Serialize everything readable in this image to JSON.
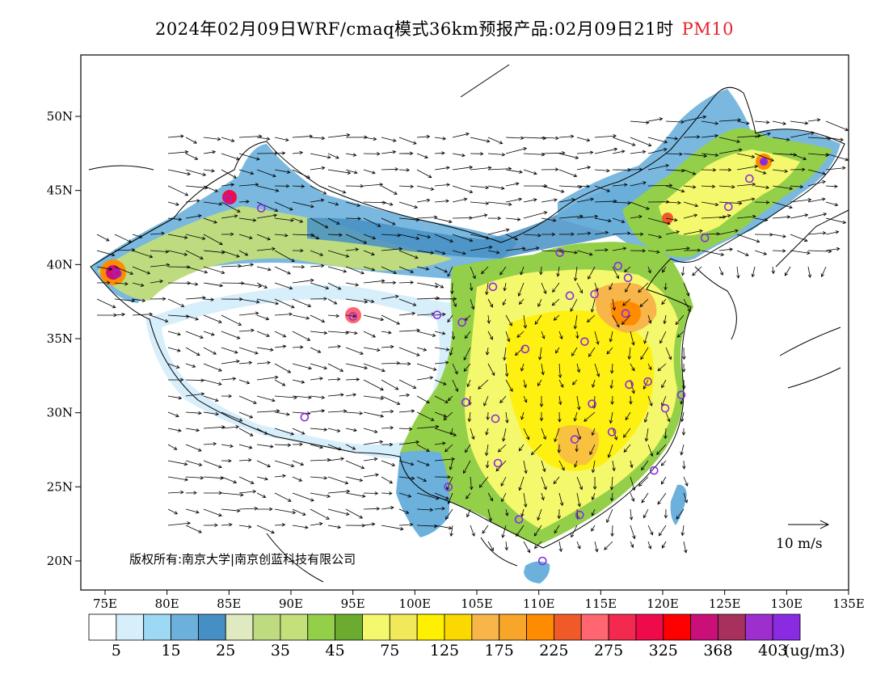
{
  "title": {
    "main": "2024年02月09日WRF/cmaq模式36km预报产品:02月09日21时",
    "variable": "PM10",
    "variable_color": "#e8222b"
  },
  "map": {
    "lat_labels": [
      "50N",
      "45N",
      "40N",
      "35N",
      "30N",
      "25N",
      "20N"
    ],
    "lon_labels": [
      "75E",
      "80E",
      "85E",
      "90E",
      "95E",
      "100E",
      "105E",
      "110E",
      "115E",
      "120E",
      "125E",
      "130E",
      "135E"
    ],
    "copyright": "版权所有:南京大学|南京创蓝科技有限公司",
    "wind_reference": "10 m/s"
  },
  "colorbar": {
    "colors": [
      "#ffffff",
      "#d7eefb",
      "#9dd8f4",
      "#6cb0dc",
      "#468fc4",
      "#dfeac0",
      "#bedc7f",
      "#c3e07a",
      "#94cf4a",
      "#6aab30",
      "#f4f86c",
      "#f2e95a",
      "#ffef00",
      "#fbd800",
      "#f8b64a",
      "#f8a62a",
      "#ff8c00",
      "#f05a28",
      "#ff6670",
      "#f4294f",
      "#ee0a4b",
      "#ff0000",
      "#c81078",
      "#a8305c",
      "#9e2fcf",
      "#8a2be2"
    ],
    "tick_labels": [
      "5",
      "15",
      "25",
      "35",
      "45",
      "75",
      "125",
      "175",
      "225",
      "275",
      "325",
      "368",
      "403"
    ],
    "unit": "(ug/m3)"
  },
  "stations": [
    [
      125.3,
      43.9
    ],
    [
      127.0,
      45.8
    ],
    [
      123.4,
      41.8
    ],
    [
      116.4,
      39.9
    ],
    [
      117.2,
      39.1
    ],
    [
      114.5,
      38.0
    ],
    [
      112.5,
      37.9
    ],
    [
      111.7,
      40.8
    ],
    [
      106.3,
      38.5
    ],
    [
      103.8,
      36.1
    ],
    [
      101.8,
      36.6
    ],
    [
      117.0,
      36.7
    ],
    [
      113.7,
      34.8
    ],
    [
      108.9,
      34.3
    ],
    [
      117.3,
      31.9
    ],
    [
      118.8,
      32.1
    ],
    [
      121.5,
      31.2
    ],
    [
      120.2,
      30.3
    ],
    [
      114.3,
      30.6
    ],
    [
      112.9,
      28.2
    ],
    [
      115.9,
      28.7
    ],
    [
      119.3,
      26.1
    ],
    [
      106.5,
      29.6
    ],
    [
      104.1,
      30.7
    ],
    [
      106.7,
      26.6
    ],
    [
      102.7,
      25.0
    ],
    [
      108.4,
      22.8
    ],
    [
      113.3,
      23.1
    ],
    [
      110.3,
      20.0
    ],
    [
      91.1,
      29.7
    ],
    [
      87.6,
      43.8
    ],
    [
      84.9,
      44.4
    ],
    [
      76.0,
      39.4
    ],
    [
      95.0,
      36.5
    ]
  ]
}
